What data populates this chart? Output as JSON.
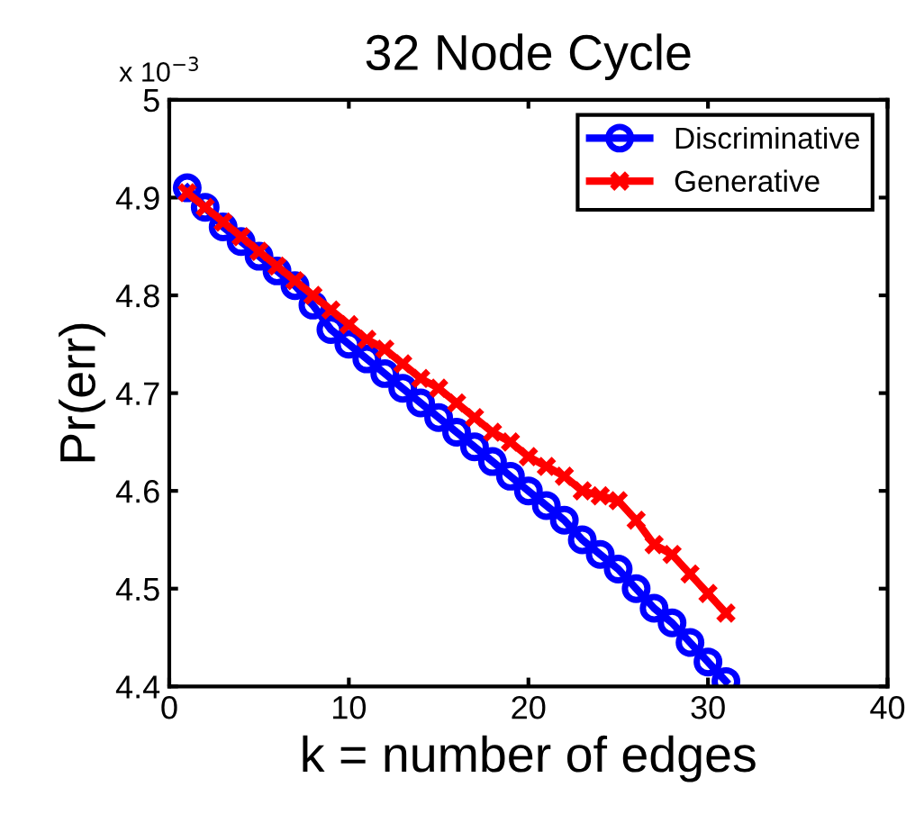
{
  "chart_data": {
    "type": "line",
    "title": "32 Node Cycle",
    "xlabel": "k = number of edges",
    "ylabel": "Pr(err)",
    "annotations": [
      "x 10$^{−3}$"
    ],
    "x": [
      1,
      2,
      3,
      4,
      5,
      6,
      7,
      8,
      9,
      10,
      11,
      12,
      13,
      14,
      15,
      16,
      17,
      18,
      19,
      20,
      21,
      22,
      23,
      24,
      25,
      26,
      27,
      28,
      29,
      30,
      31
    ],
    "series": [
      {
        "name": "Discriminative",
        "color": "#0000ff",
        "marker": "circle",
        "values": [
          4.91,
          4.89,
          4.87,
          4.855,
          4.84,
          4.825,
          4.81,
          4.79,
          4.765,
          4.75,
          4.735,
          4.72,
          4.705,
          4.69,
          4.675,
          4.66,
          4.645,
          4.63,
          4.615,
          4.6,
          4.585,
          4.57,
          4.55,
          4.535,
          4.52,
          4.5,
          4.48,
          4.465,
          4.445,
          4.425,
          4.405
        ]
      },
      {
        "name": "Generative",
        "color": "#ff0000",
        "marker": "cross",
        "values": [
          4.905,
          4.89,
          4.875,
          4.86,
          4.845,
          4.83,
          4.815,
          4.8,
          4.785,
          4.77,
          4.755,
          4.745,
          4.73,
          4.715,
          4.705,
          4.69,
          4.675,
          4.66,
          4.65,
          4.635,
          4.625,
          4.615,
          4.6,
          4.595,
          4.59,
          4.57,
          4.545,
          4.535,
          4.515,
          4.495,
          4.475
        ]
      }
    ],
    "xlim": [
      0,
      40
    ],
    "xticks": [
      0,
      10,
      20,
      30,
      40
    ],
    "ylim": [
      4.4,
      5
    ],
    "yticks": [
      4.4,
      4.5,
      4.6,
      4.7,
      4.8,
      4.9,
      5
    ],
    "grid": false,
    "legend": "top right",
    "line_style": "solid"
  }
}
